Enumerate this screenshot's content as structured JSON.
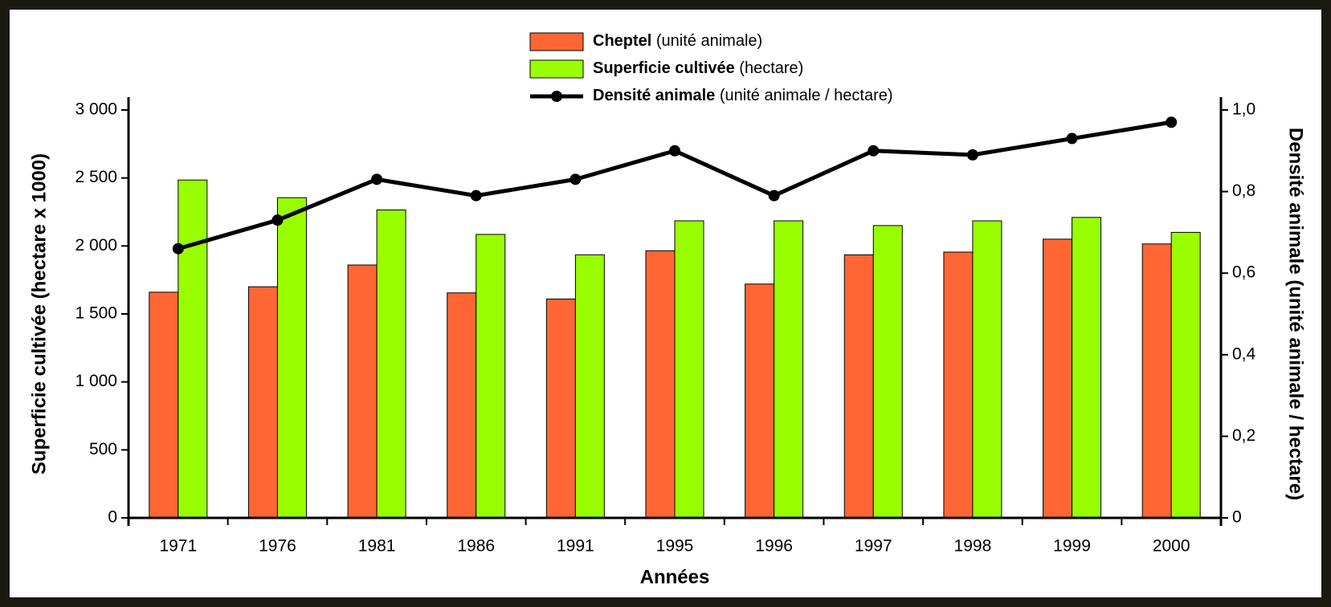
{
  "chart_data": {
    "type": "bar",
    "categories": [
      "1971",
      "1976",
      "1981",
      "1986",
      "1991",
      "1995",
      "1996",
      "1997",
      "1998",
      "1999",
      "2000"
    ],
    "series": [
      {
        "name": "Cheptel (unité animale)",
        "color": "#ff6633",
        "values": [
          1660,
          1700,
          1860,
          1655,
          1610,
          1965,
          1720,
          1935,
          1955,
          2050,
          2015
        ]
      },
      {
        "name": "Superficie cultivée (hectare)",
        "color": "#99ff00",
        "values": [
          2485,
          2355,
          2265,
          2085,
          1935,
          2185,
          2185,
          2150,
          2185,
          2210,
          2100
        ]
      },
      {
        "name": "Densité animale (unité animale / hectare)",
        "color": "#000000",
        "type": "line",
        "axis": "y2",
        "values": [
          0.66,
          0.73,
          0.83,
          0.79,
          0.83,
          0.9,
          0.79,
          0.9,
          0.89,
          0.93,
          0.97
        ]
      }
    ],
    "xlabel": "Années",
    "ylabel": "Superficie cultivée (hectare x 1000)",
    "y2label": "Densité animale  (unité animale / hectare)",
    "ylim": [
      0,
      3000
    ],
    "yticks": [
      0,
      500,
      {
        "value": 1000,
        "label": "1 000"
      },
      {
        "value": 1500,
        "label": "1 500"
      },
      {
        "value": 2000,
        "label": "2 000"
      },
      {
        "value": 2500,
        "label": "2 500"
      },
      {
        "value": 3000,
        "label": "3 000"
      }
    ],
    "y2lim": [
      0,
      1
    ],
    "y2ticks": [
      0,
      {
        "value": 0.2,
        "label": "0,2"
      },
      {
        "value": 0.4,
        "label": "0,4"
      },
      {
        "value": 0.6,
        "label": "0,6"
      },
      {
        "value": 0.8,
        "label": "0,8"
      },
      {
        "value": 1,
        "label": "1,0"
      }
    ],
    "legend": "top"
  }
}
